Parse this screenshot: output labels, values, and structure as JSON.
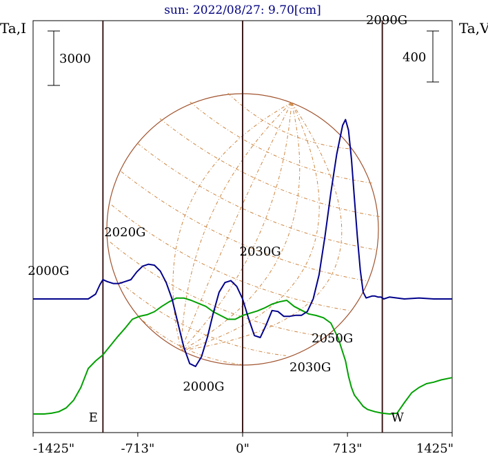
{
  "chart_data": {
    "type": "line",
    "title": "sun: 2022/08/27: 9.70[cm]",
    "left_axis_label": "Ta,I",
    "right_axis_label": "Ta,V",
    "left_scale_bar_label": "3000",
    "right_scale_bar_label": "400",
    "x_tick_labels": [
      "-1425\"",
      "-713\"",
      "0\"",
      "713\"",
      "1425\""
    ],
    "x_ticks": [
      -1425,
      -713,
      0,
      713,
      1425
    ],
    "xlim": [
      -1425,
      1425
    ],
    "limb_labels": [
      "E",
      "W"
    ],
    "limb_positions": [
      -950,
      950
    ],
    "series": [
      {
        "name": "I",
        "color": "#00008b",
        "x": [
          -1425,
          -1300,
          -1050,
          -1000,
          -970,
          -950,
          -920,
          -880,
          -840,
          -800,
          -760,
          -720,
          -680,
          -640,
          -600,
          -560,
          -520,
          -480,
          -440,
          -400,
          -360,
          -320,
          -280,
          -240,
          -200,
          -160,
          -120,
          -80,
          -40,
          0,
          40,
          80,
          120,
          160,
          200,
          240,
          280,
          320,
          360,
          400,
          440,
          480,
          520,
          560,
          600,
          640,
          680,
          700,
          720,
          740,
          760,
          780,
          800,
          820,
          840,
          860,
          880,
          900,
          920,
          940,
          960,
          980,
          1000,
          1050,
          1100,
          1200,
          1300,
          1425
        ],
        "y": [
          -0.05,
          -0.05,
          -0.05,
          0.0,
          0.1,
          0.15,
          0.13,
          0.11,
          0.11,
          0.13,
          0.15,
          0.23,
          0.29,
          0.31,
          0.3,
          0.24,
          0.12,
          -0.05,
          -0.3,
          -0.55,
          -0.72,
          -0.75,
          -0.65,
          -0.45,
          -0.2,
          0.02,
          0.12,
          0.14,
          0.08,
          -0.05,
          -0.25,
          -0.43,
          -0.45,
          -0.32,
          -0.17,
          -0.18,
          -0.23,
          -0.23,
          -0.22,
          -0.22,
          -0.18,
          -0.05,
          0.2,
          0.6,
          1.05,
          1.45,
          1.75,
          1.81,
          1.7,
          1.4,
          1.0,
          0.6,
          0.25,
          0.02,
          -0.04,
          -0.03,
          -0.02,
          -0.02,
          -0.03,
          -0.03,
          -0.05,
          -0.04,
          -0.03,
          -0.04,
          -0.05,
          -0.04,
          -0.05,
          -0.05
        ]
      },
      {
        "name": "V",
        "color": "#00a000",
        "x": [
          -1425,
          -1350,
          -1300,
          -1250,
          -1200,
          -1150,
          -1100,
          -1050,
          -1000,
          -950,
          -900,
          -850,
          -800,
          -750,
          -700,
          -650,
          -600,
          -550,
          -500,
          -450,
          -400,
          -350,
          -300,
          -250,
          -200,
          -150,
          -100,
          -50,
          0,
          50,
          100,
          150,
          200,
          250,
          300,
          350,
          400,
          450,
          500,
          550,
          600,
          650,
          700,
          720,
          740,
          760,
          780,
          800,
          820,
          850,
          900,
          950,
          1000,
          1050,
          1100,
          1150,
          1200,
          1250,
          1300,
          1350,
          1425
        ],
        "y": [
          0,
          0,
          0.01,
          0.03,
          0.08,
          0.18,
          0.35,
          0.6,
          0.7,
          0.78,
          0.9,
          1.02,
          1.13,
          1.25,
          1.29,
          1.31,
          1.35,
          1.42,
          1.48,
          1.53,
          1.53,
          1.5,
          1.46,
          1.42,
          1.35,
          1.3,
          1.25,
          1.25,
          1.3,
          1.33,
          1.36,
          1.4,
          1.45,
          1.48,
          1.5,
          1.42,
          1.37,
          1.32,
          1.3,
          1.27,
          1.2,
          1.0,
          0.7,
          0.5,
          0.35,
          0.25,
          0.2,
          0.15,
          0.1,
          0.06,
          0.03,
          0.01,
          0,
          0.01,
          0.15,
          0.28,
          0.35,
          0.4,
          0.42,
          0.45,
          0.48
        ]
      }
    ],
    "annotations": [
      {
        "text": "2000G",
        "x": -1320,
        "y": 0.2
      },
      {
        "text": "2020G",
        "x": -800,
        "y": 0.6
      },
      {
        "text": "2030G",
        "x": 120,
        "y": 0.4
      },
      {
        "text": "2000G",
        "x": -265,
        "y": -1.0
      },
      {
        "text": "2030G",
        "x": 460,
        "y": -0.8
      },
      {
        "text": "2050G",
        "x": 610,
        "y": -0.5
      },
      {
        "text": "2090G",
        "x": 980,
        "y": 2.8
      }
    ]
  }
}
